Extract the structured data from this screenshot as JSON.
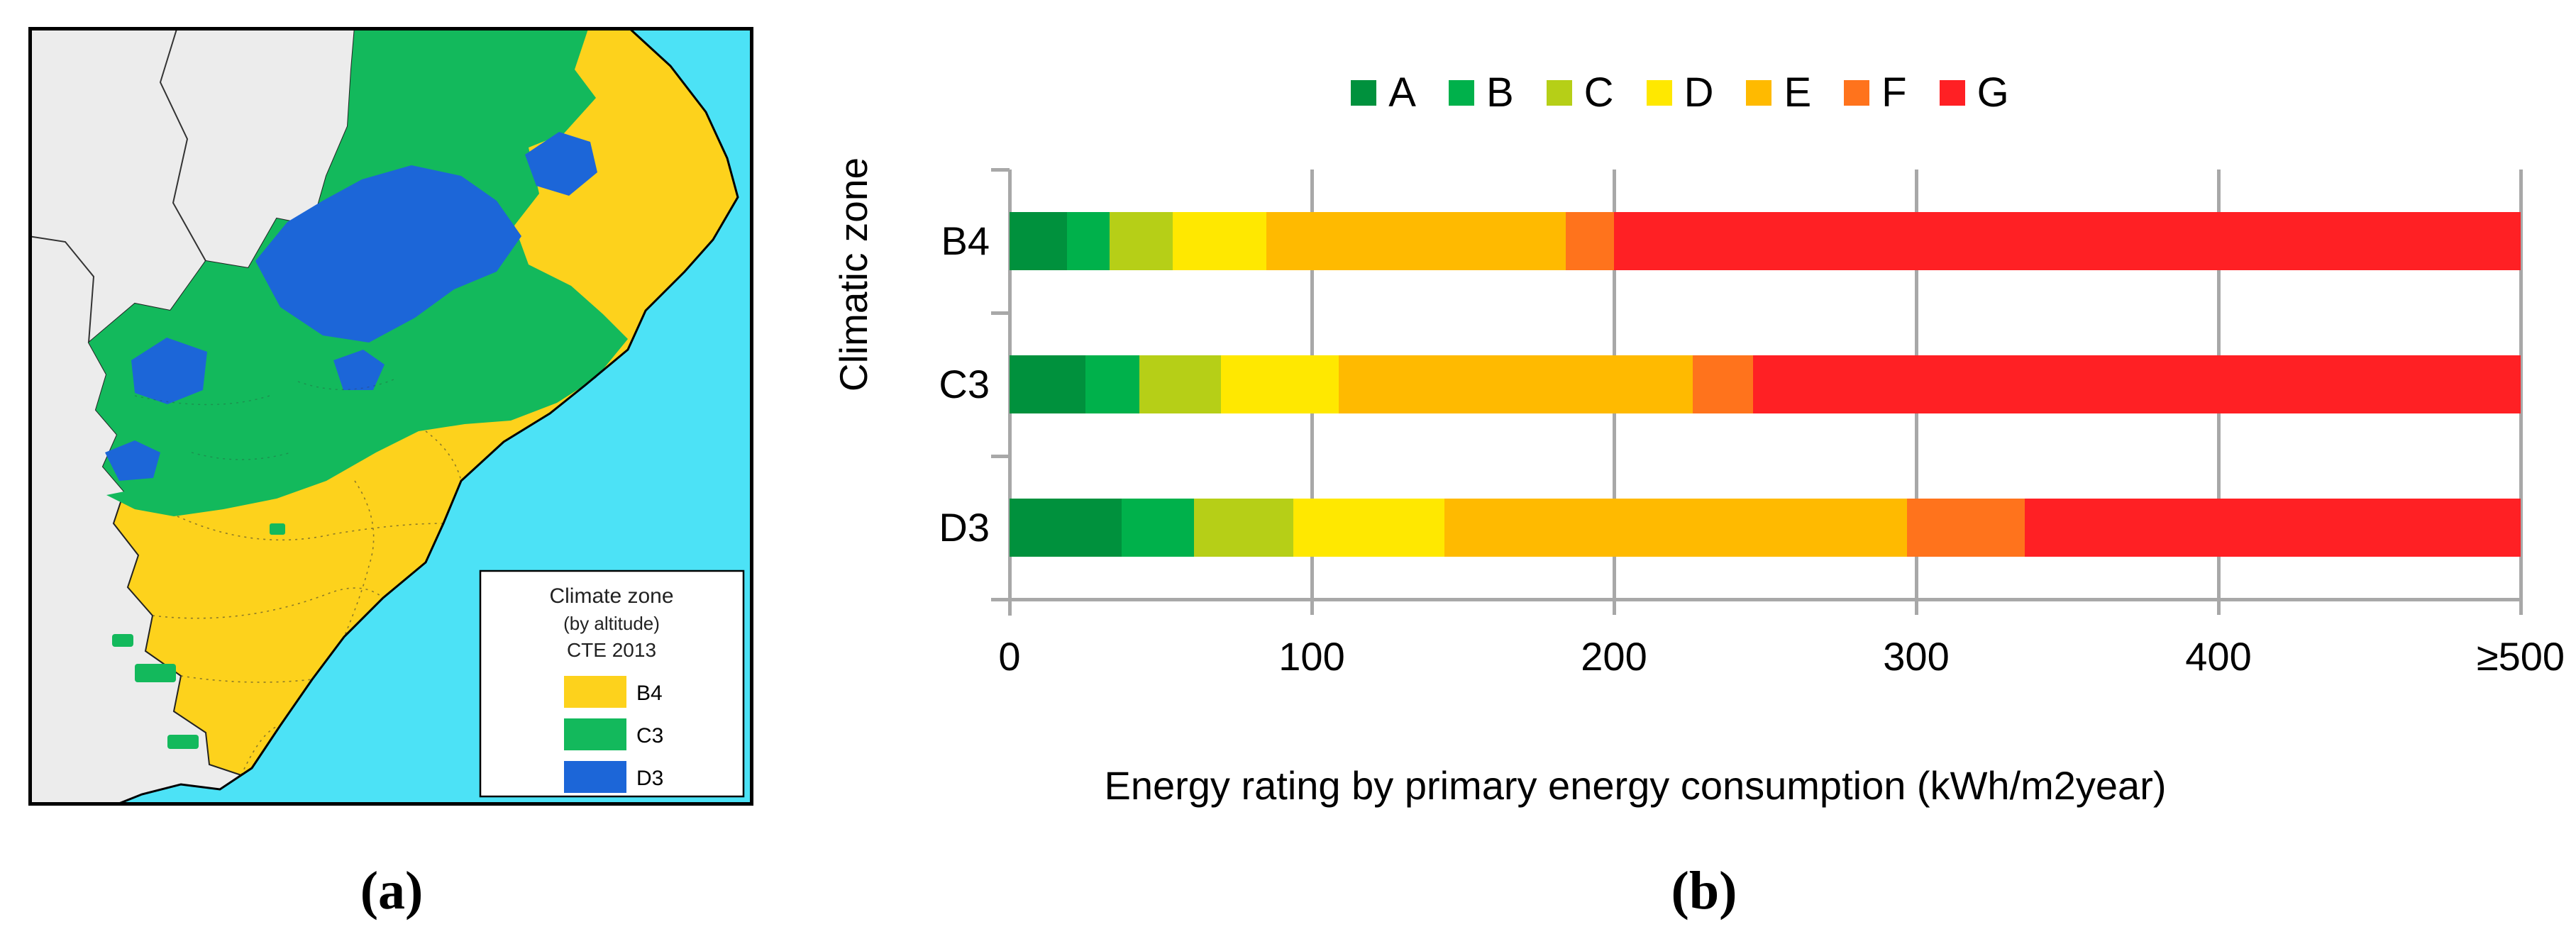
{
  "figure": {
    "panel_a_label": "(a)",
    "panel_b_label": "(b)"
  },
  "map": {
    "legend": {
      "title_line1": "Climate zone",
      "title_line2": "(by altitude)",
      "title_line3": "CTE 2013",
      "items": [
        {
          "label": "B4",
          "zone": "b4"
        },
        {
          "label": "C3",
          "zone": "c3"
        },
        {
          "label": "D3",
          "zone": "d3"
        }
      ]
    },
    "colors": {
      "sea": "#4ce2f6",
      "outside_land": "#ececec",
      "coastline": "#000000",
      "b4": "#fdd21c",
      "c3": "#13b95c",
      "d3": "#1c66d8"
    }
  },
  "chart_data": {
    "type": "bar",
    "orientation": "horizontal",
    "stacked": true,
    "title": "",
    "xlabel": "Energy rating by primary energy consumption (kWh/m2year)",
    "ylabel": "Climatic zone",
    "categories": [
      "B4",
      "C3",
      "D3"
    ],
    "series": [
      {
        "name": "A",
        "color": "#00913d",
        "values": [
          19,
          25,
          37
        ]
      },
      {
        "name": "B",
        "color": "#00b14b",
        "values": [
          14,
          18,
          24
        ]
      },
      {
        "name": "C",
        "color": "#b6cf17",
        "values": [
          21,
          27,
          33
        ]
      },
      {
        "name": "D",
        "color": "#ffe800",
        "values": [
          31,
          39,
          50
        ]
      },
      {
        "name": "E",
        "color": "#ffba00",
        "values": [
          99,
          117,
          153
        ]
      },
      {
        "name": "F",
        "color": "#ff731c",
        "values": [
          16,
          20,
          39
        ]
      },
      {
        "name": "G",
        "color": "#ff2024",
        "values": [
          300,
          254,
          164
        ]
      }
    ],
    "xlim": [
      0,
      500
    ],
    "xticks": [
      {
        "value": 0,
        "label": "0"
      },
      {
        "value": 100,
        "label": "100"
      },
      {
        "value": 200,
        "label": "200"
      },
      {
        "value": 300,
        "label": "300"
      },
      {
        "value": 400,
        "label": "400"
      },
      {
        "value": 500,
        "label": "≥500"
      }
    ],
    "legend_position": "top",
    "grid": "vertical",
    "grid_color": "#a8a8a8"
  }
}
